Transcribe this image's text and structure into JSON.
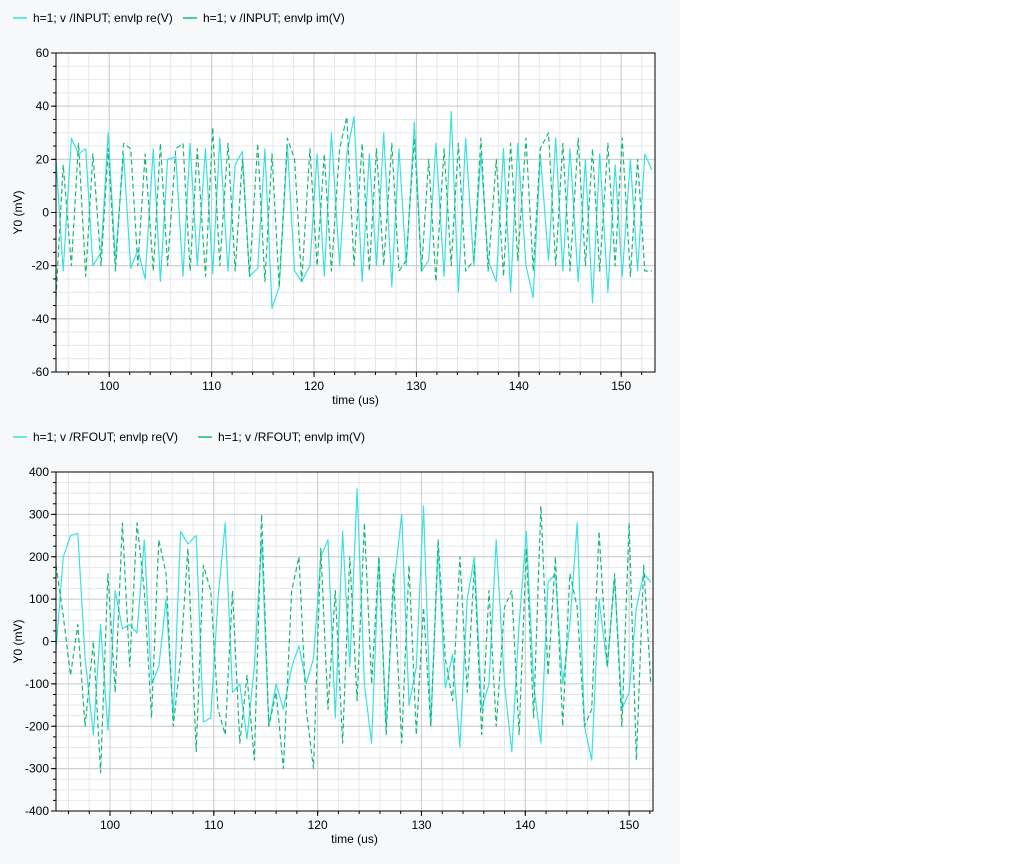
{
  "chart_data": [
    {
      "type": "line",
      "ylabel": "Y0 (mV)",
      "xlabel": "time (us)",
      "xlim": [
        94.8,
        153.3
      ],
      "ylim": [
        -60,
        60
      ],
      "x_ticks": [
        100,
        110,
        120,
        130,
        140,
        150
      ],
      "y_ticks": [
        -60,
        -40,
        -20,
        0,
        20,
        40,
        60
      ],
      "grid": true,
      "legend_placement": "top-left",
      "series": [
        {
          "name": "h=1; v /INPUT; envlp re(V)",
          "color": "#3de0e0",
          "dash": "solid",
          "x": [
            94.8,
            95.5,
            96.3,
            97.0,
            97.7,
            98.4,
            99.2,
            99.9,
            100.6,
            101.4,
            102.1,
            102.8,
            103.5,
            104.3,
            105.0,
            105.7,
            106.5,
            107.2,
            107.9,
            108.6,
            109.4,
            110.1,
            110.8,
            111.6,
            112.3,
            113.0,
            113.7,
            114.5,
            115.2,
            115.9,
            116.6,
            117.4,
            118.1,
            118.8,
            119.6,
            120.3,
            121.0,
            121.7,
            122.5,
            123.2,
            123.9,
            124.7,
            125.4,
            126.1,
            126.8,
            127.6,
            128.3,
            129.0,
            129.8,
            130.5,
            131.2,
            131.9,
            132.7,
            133.4,
            134.1,
            134.8,
            135.6,
            136.3,
            137.0,
            137.8,
            138.5,
            139.2,
            139.9,
            140.7,
            141.4,
            142.1,
            142.9,
            143.6,
            144.3,
            145.0,
            145.8,
            146.5,
            147.2,
            147.9,
            148.7,
            149.4,
            150.1,
            150.9,
            151.6,
            152.3,
            153.0
          ],
          "values": [
            20,
            -22,
            28,
            22,
            24,
            -20,
            -15,
            30,
            -18,
            22,
            -21,
            -14,
            -25,
            24,
            -26,
            20,
            21,
            -24,
            26,
            -20,
            24,
            -23,
            28,
            -22,
            18,
            23,
            -24,
            -21,
            24,
            -36,
            -28,
            25,
            -22,
            -26,
            -20,
            22,
            -24,
            30,
            -20,
            22,
            36,
            -26,
            22,
            -20,
            30,
            -28,
            24,
            -20,
            34,
            -22,
            -18,
            26,
            -24,
            38,
            -30,
            28,
            -20,
            22,
            -18,
            -26,
            24,
            -30,
            26,
            -20,
            -32,
            22,
            -18,
            28,
            -22,
            24,
            -26,
            20,
            -34,
            22,
            -30,
            18,
            -24,
            20,
            -22,
            22,
            16
          ]
        },
        {
          "name": "h=1; v /INPUT; envlp im(V)",
          "color": "#18b878",
          "dash": "dashed",
          "x": [
            94.8,
            95.5,
            96.3,
            97.0,
            97.7,
            98.4,
            99.2,
            99.9,
            100.6,
            101.4,
            102.1,
            102.8,
            103.5,
            104.3,
            105.0,
            105.7,
            106.5,
            107.2,
            107.9,
            108.6,
            109.4,
            110.1,
            110.8,
            111.6,
            112.3,
            113.0,
            113.7,
            114.5,
            115.2,
            115.9,
            116.6,
            117.4,
            118.1,
            118.8,
            119.6,
            120.3,
            121.0,
            121.7,
            122.5,
            123.2,
            123.9,
            124.7,
            125.4,
            126.1,
            126.8,
            127.6,
            128.3,
            129.0,
            129.8,
            130.5,
            131.2,
            131.9,
            132.7,
            133.4,
            134.1,
            134.8,
            135.6,
            136.3,
            137.0,
            137.8,
            138.5,
            139.2,
            139.9,
            140.7,
            141.4,
            142.1,
            142.9,
            143.6,
            144.3,
            145.0,
            145.8,
            146.5,
            147.2,
            147.9,
            148.7,
            149.4,
            150.1,
            150.9,
            151.6,
            152.3,
            153.0
          ],
          "values": [
            -32,
            18,
            -20,
            26,
            -24,
            22,
            -20,
            24,
            -22,
            26,
            24,
            -20,
            22,
            -22,
            26,
            -20,
            24,
            26,
            -22,
            24,
            -24,
            32,
            -20,
            26,
            -22,
            20,
            -24,
            26,
            -26,
            22,
            -28,
            28,
            20,
            -26,
            24,
            -20,
            22,
            -22,
            24,
            36,
            -20,
            26,
            -22,
            24,
            -20,
            26,
            -22,
            -18,
            28,
            -22,
            20,
            -26,
            24,
            -20,
            26,
            -22,
            -18,
            28,
            -22,
            20,
            -24,
            26,
            -18,
            28,
            -22,
            24,
            30,
            -20,
            26,
            -22,
            28,
            -20,
            24,
            -22,
            26,
            -20,
            28,
            -24,
            20,
            -22,
            -22
          ]
        }
      ]
    },
    {
      "type": "line",
      "ylabel": "Y0 (mV)",
      "xlabel": "time (us)",
      "xlim": [
        94.8,
        152.3
      ],
      "ylim": [
        -400,
        400
      ],
      "x_ticks": [
        100,
        110,
        120,
        130,
        140,
        150
      ],
      "y_ticks": [
        -400,
        -300,
        -200,
        -100,
        0,
        100,
        200,
        300,
        400
      ],
      "grid": true,
      "legend_placement": "top-left",
      "series": [
        {
          "name": "h=1; v /RFOUT; envlp re(V)",
          "color": "#3de0e0",
          "dash": "solid",
          "x": [
            94.8,
            95.5,
            96.2,
            96.9,
            97.6,
            98.4,
            99.1,
            99.8,
            100.5,
            101.2,
            101.9,
            102.6,
            103.3,
            104.0,
            104.7,
            105.4,
            106.1,
            106.8,
            107.5,
            108.3,
            109.0,
            109.7,
            110.4,
            111.1,
            111.8,
            112.5,
            113.2,
            113.9,
            114.6,
            115.3,
            116.0,
            116.7,
            117.5,
            118.2,
            118.9,
            119.6,
            120.3,
            121.0,
            121.7,
            122.4,
            123.1,
            123.8,
            124.5,
            125.2,
            125.9,
            126.6,
            127.3,
            128.1,
            128.8,
            129.5,
            130.2,
            130.9,
            131.6,
            132.3,
            133.0,
            133.7,
            134.4,
            135.1,
            135.8,
            136.5,
            137.2,
            138.0,
            138.7,
            139.4,
            140.1,
            140.8,
            141.5,
            142.2,
            142.9,
            143.6,
            144.3,
            145.0,
            145.7,
            146.4,
            147.1,
            147.9,
            148.6,
            149.3,
            150.0,
            150.7,
            151.4,
            152.1
          ],
          "values": [
            -20,
            200,
            250,
            255,
            -40,
            -220,
            40,
            -210,
            120,
            30,
            40,
            20,
            240,
            -100,
            -60,
            100,
            -180,
            260,
            230,
            250,
            -190,
            -180,
            100,
            280,
            -120,
            -100,
            -230,
            -60,
            240,
            -200,
            -100,
            -160,
            -60,
            -10,
            -100,
            -40,
            200,
            240,
            -180,
            260,
            -60,
            360,
            -100,
            -240,
            200,
            -200,
            120,
            300,
            -150,
            -60,
            320,
            -200,
            220,
            -110,
            -30,
            -250,
            100,
            200,
            -160,
            -100,
            240,
            -100,
            -260,
            40,
            260,
            -100,
            -240,
            140,
            160,
            -100,
            40,
            280,
            -200,
            -280,
            100,
            -60,
            150,
            -160,
            -120,
            80,
            160,
            140
          ]
        },
        {
          "name": "h=1; v /RFOUT; envlp im(V)",
          "color": "#18b878",
          "dash": "dashed",
          "x": [
            94.8,
            95.5,
            96.2,
            96.9,
            97.6,
            98.4,
            99.1,
            99.8,
            100.5,
            101.2,
            101.9,
            102.6,
            103.3,
            104.0,
            104.7,
            105.4,
            106.1,
            106.8,
            107.5,
            108.3,
            109.0,
            109.7,
            110.4,
            111.1,
            111.8,
            112.5,
            113.2,
            113.9,
            114.6,
            115.3,
            116.0,
            116.7,
            117.5,
            118.2,
            118.9,
            119.6,
            120.3,
            121.0,
            121.7,
            122.4,
            123.1,
            123.8,
            124.5,
            125.2,
            125.9,
            126.6,
            127.3,
            128.1,
            128.8,
            129.5,
            130.2,
            130.9,
            131.6,
            132.3,
            133.0,
            133.7,
            134.4,
            135.1,
            135.8,
            136.5,
            137.2,
            138.0,
            138.7,
            139.4,
            140.1,
            140.8,
            141.5,
            142.2,
            142.9,
            143.6,
            144.3,
            145.0,
            145.7,
            146.4,
            147.1,
            147.9,
            148.6,
            149.3,
            150.0,
            150.7,
            151.4,
            152.1
          ],
          "values": [
            180,
            60,
            -80,
            40,
            -200,
            0,
            -310,
            160,
            -120,
            280,
            -60,
            280,
            120,
            -180,
            240,
            160,
            -200,
            -40,
            220,
            -260,
            180,
            120,
            -160,
            -220,
            120,
            -240,
            -80,
            -280,
            300,
            -200,
            -120,
            -300,
            120,
            200,
            -160,
            -300,
            220,
            -160,
            120,
            -240,
            200,
            -140,
            280,
            -100,
            200,
            -220,
            160,
            -240,
            180,
            -220,
            80,
            -200,
            240,
            -40,
            -140,
            200,
            -120,
            180,
            -220,
            120,
            -200,
            80,
            120,
            -220,
            220,
            -180,
            320,
            -80,
            200,
            -200,
            160,
            80,
            -200,
            -160,
            260,
            -60,
            160,
            -200,
            280,
            -280,
            180,
            -100
          ]
        }
      ]
    }
  ]
}
